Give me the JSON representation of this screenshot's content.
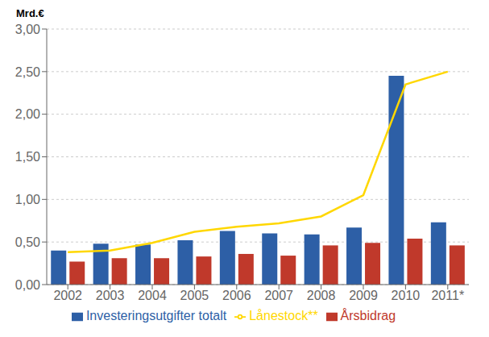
{
  "chart_data": {
    "type": "bar",
    "ylabel": "Mrd.€",
    "categories": [
      "2002",
      "2003",
      "2004",
      "2005",
      "2006",
      "2007",
      "2008",
      "2009",
      "2010",
      "2011*"
    ],
    "series": [
      {
        "name": "Investeringsutgifter totalt",
        "type": "bar",
        "color": "#2D5FA6",
        "values": [
          0.4,
          0.48,
          0.47,
          0.52,
          0.63,
          0.6,
          0.59,
          0.67,
          2.45,
          0.73
        ]
      },
      {
        "name": "Årsbidrag",
        "type": "bar",
        "color": "#C0392B",
        "values": [
          0.27,
          0.31,
          0.31,
          0.33,
          0.36,
          0.34,
          0.46,
          0.49,
          0.54,
          0.46
        ]
      },
      {
        "name": "Lånestock**",
        "type": "line",
        "color": "#FFD700",
        "values": [
          0.38,
          0.4,
          0.49,
          0.62,
          0.68,
          0.72,
          0.8,
          1.05,
          2.35,
          2.5
        ]
      }
    ],
    "ylim": [
      0.0,
      3.0
    ],
    "yticks": [
      {
        "value": 0.0,
        "label": "0,00"
      },
      {
        "value": 0.5,
        "label": "0,50"
      },
      {
        "value": 1.0,
        "label": "1,00"
      },
      {
        "value": 1.5,
        "label": "1,50"
      },
      {
        "value": 2.0,
        "label": "2,00"
      },
      {
        "value": 2.5,
        "label": "2,50"
      },
      {
        "value": 3.0,
        "label": "3,00"
      }
    ],
    "grid": true,
    "legend": "bottom"
  }
}
